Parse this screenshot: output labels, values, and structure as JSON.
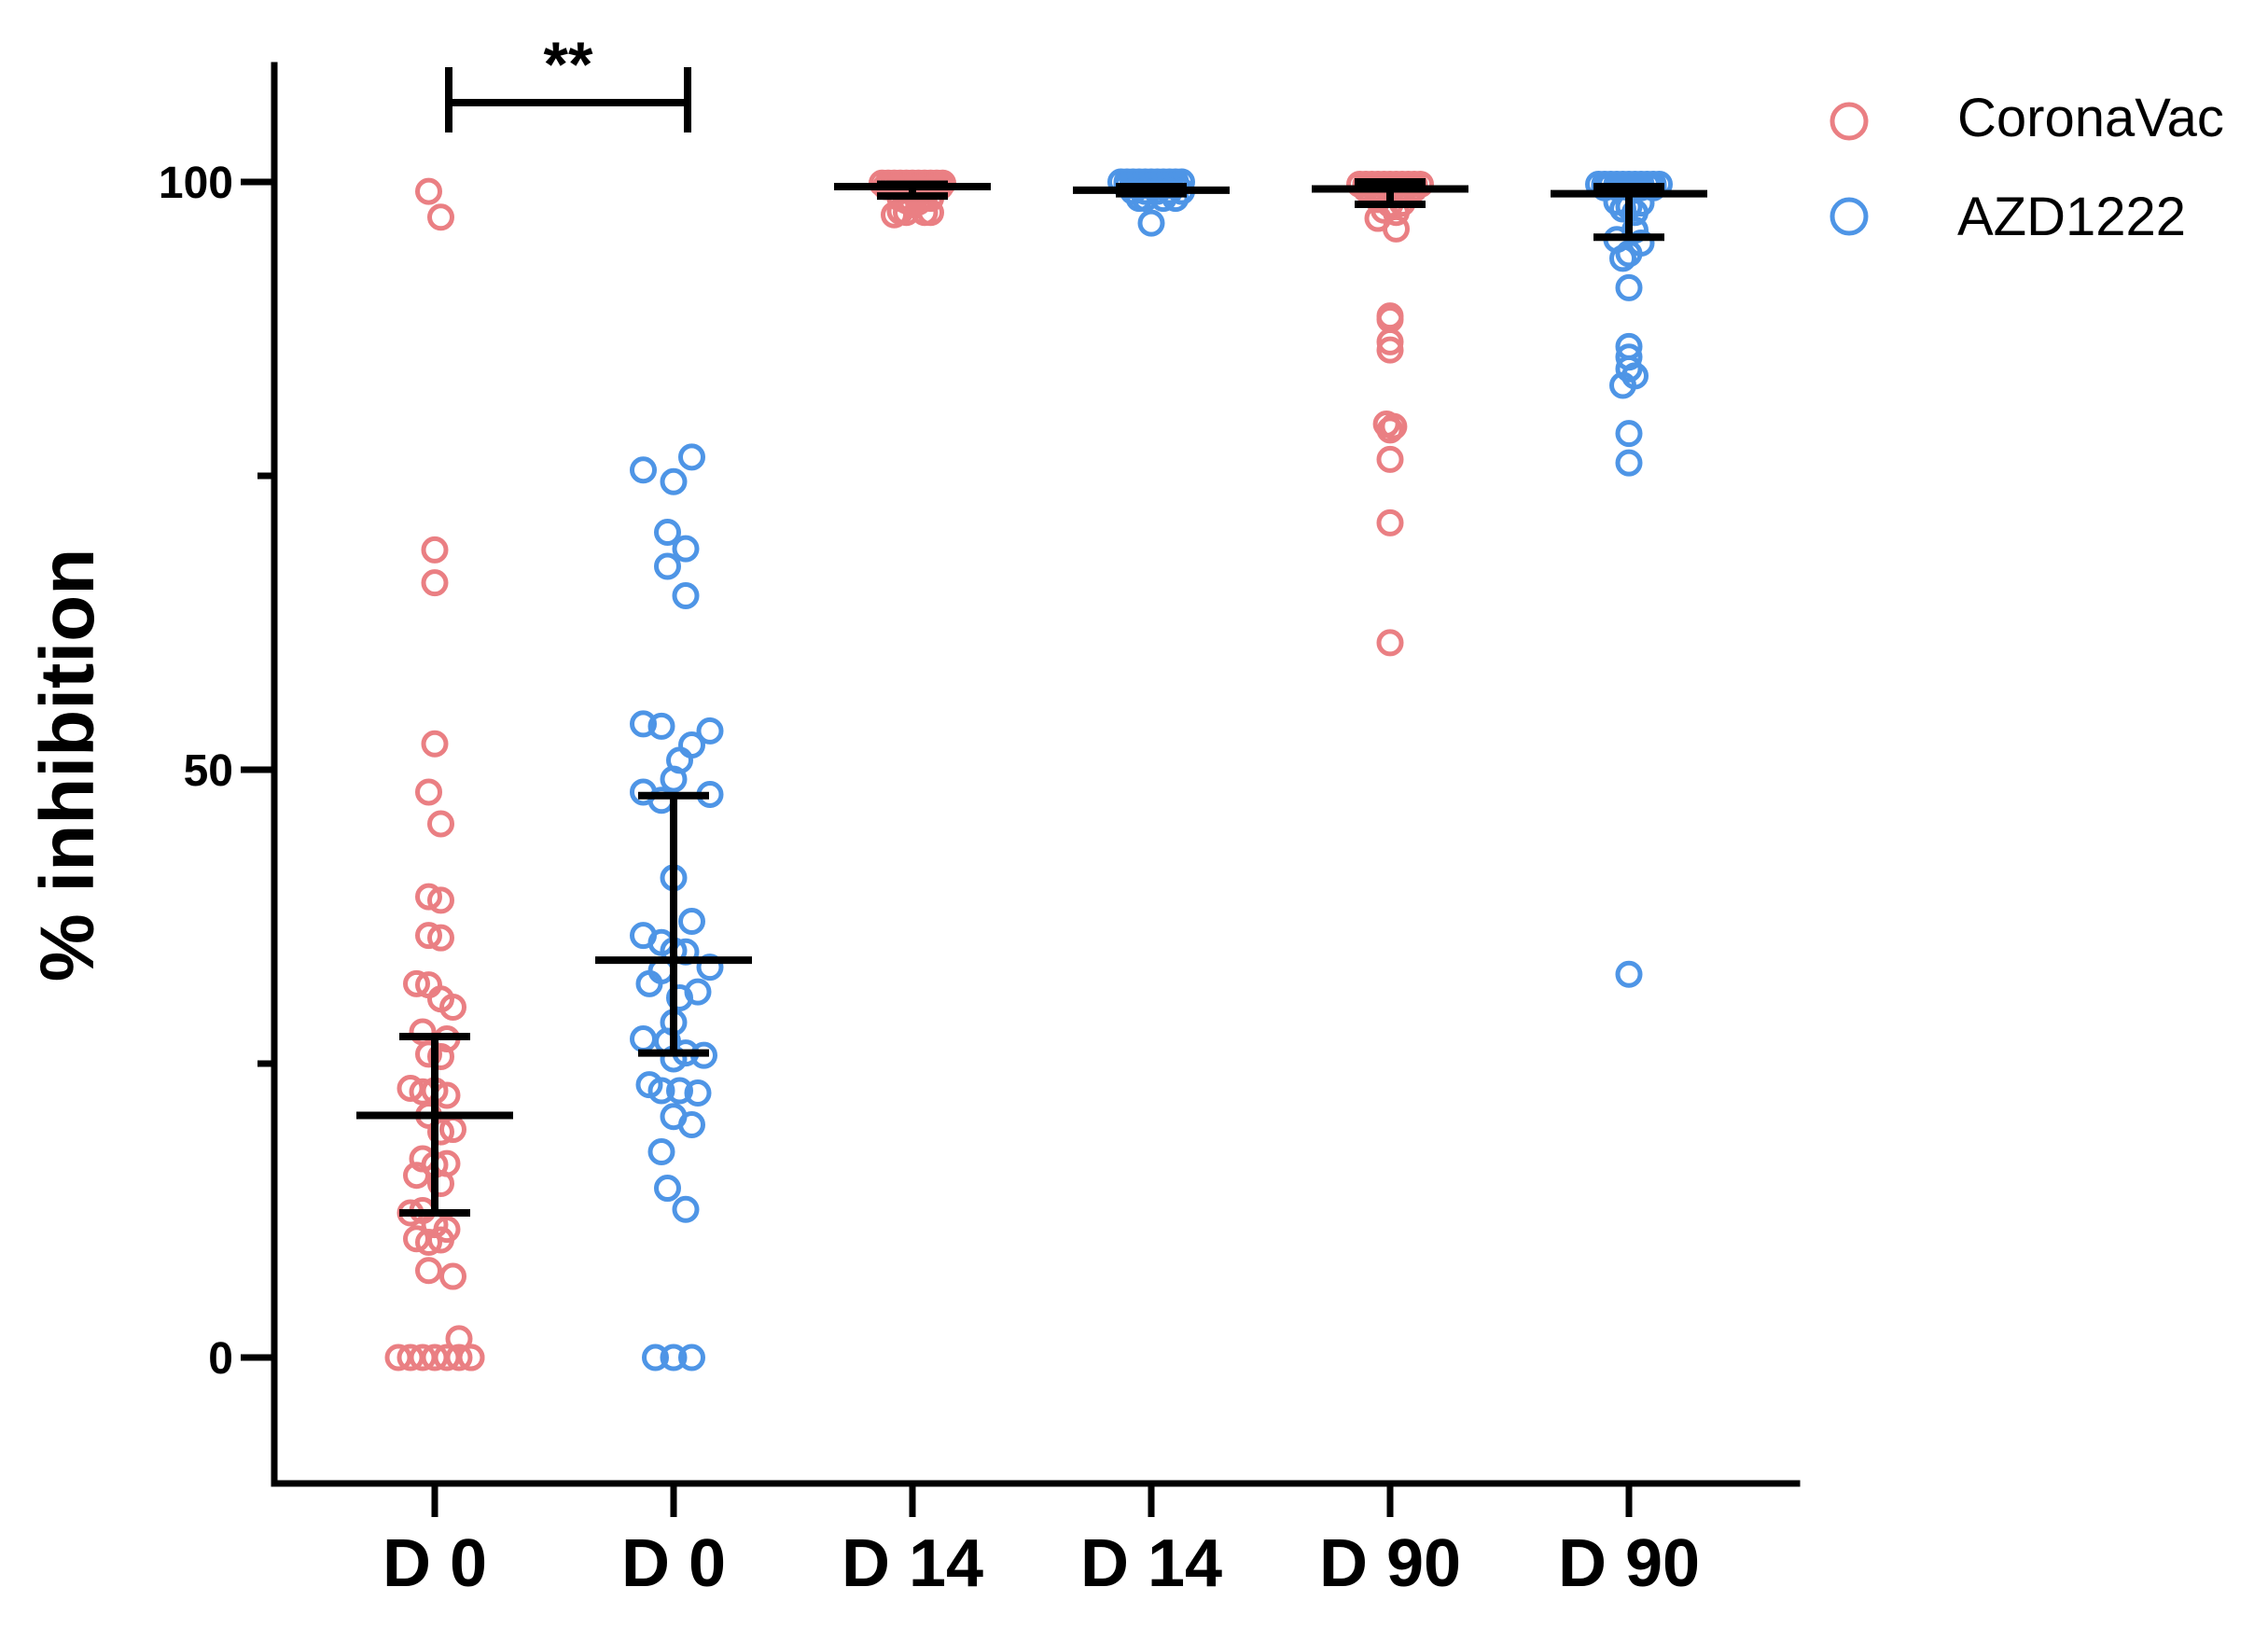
{
  "chart_data": {
    "type": "scatter",
    "title": "",
    "xlabel": "",
    "ylabel": "% inhibition",
    "ylim": [
      -10,
      111
    ],
    "yticks_major": [
      0,
      50,
      100
    ],
    "yticks_minor": [
      25,
      75
    ],
    "categories": [
      "D 0",
      "D 0",
      "D 14",
      "D 14",
      "D 90",
      "D 90"
    ],
    "colors": {
      "CoronaVac": "#ea7f83",
      "AZD1222": "#4e95e6"
    },
    "legend": {
      "position": "top-right",
      "entries": [
        "CoronaVac",
        "AZD1222"
      ]
    },
    "significance": {
      "label": "**",
      "from_group": 0,
      "to_group": 1
    },
    "groups": [
      {
        "category_index": 0,
        "series": "CoronaVac",
        "values": [
          99.2,
          97.0,
          68.7,
          65.9,
          52.2,
          48.1,
          45.4,
          39.2,
          38.9,
          35.9,
          35.7,
          31.8,
          31.7,
          30.5,
          29.8,
          27.7,
          27.1,
          25.8,
          25.6,
          22.9,
          22.6,
          22.7,
          22.3,
          20.6,
          19.2,
          19.4,
          16.9,
          16.4,
          16.5,
          15.5,
          14.8,
          12.3,
          12.5,
          11.3,
          10.9,
          10.1,
          9.8,
          10.0,
          7.4,
          6.9,
          1.6,
          0,
          0,
          0,
          0,
          0,
          0,
          0,
          0
        ],
        "offsets": [
          -0.05,
          0.05,
          0,
          0,
          0,
          -0.05,
          0.05,
          -0.05,
          0.05,
          -0.05,
          0.05,
          -0.15,
          -0.05,
          0.05,
          0.15,
          -0.1,
          0.1,
          -0.05,
          0.05,
          -0.2,
          -0.1,
          0,
          0.1,
          -0.05,
          0.05,
          0.15,
          -0.1,
          0,
          0.1,
          -0.15,
          0.05,
          -0.2,
          -0.1,
          0,
          0.1,
          -0.15,
          -0.05,
          0.05,
          -0.05,
          0.15,
          0.2,
          -0.3,
          -0.2,
          -0.1,
          0,
          0.1,
          0.2,
          0.3,
          0.3
        ],
        "mean": 20.6,
        "error_low": 12.3,
        "error_high": 27.3
      },
      {
        "category_index": 1,
        "series": "AZD1222",
        "values": [
          76.6,
          75.5,
          74.5,
          70.2,
          68.8,
          67.3,
          64.8,
          53.9,
          53.7,
          53.3,
          52.1,
          50.8,
          49.2,
          48.1,
          47.4,
          47.9,
          40.8,
          37.1,
          35.9,
          35.3,
          34.6,
          34.5,
          33.2,
          32.9,
          31.8,
          31.1,
          30.6,
          28.5,
          27.1,
          26.9,
          25.9,
          25.7,
          25.4,
          23.2,
          22.7,
          22.7,
          22.5,
          20.5,
          19.8,
          17.5,
          14.4,
          12.6,
          0,
          0,
          0
        ],
        "offsets": [
          0.15,
          -0.25,
          0,
          -0.05,
          0.1,
          -0.05,
          0.1,
          -0.25,
          -0.1,
          0.3,
          0.15,
          0.05,
          0,
          -0.25,
          -0.1,
          0.3,
          0,
          0.15,
          -0.25,
          -0.1,
          0,
          0.1,
          0.3,
          -0.1,
          -0.2,
          0.2,
          0.05,
          0,
          -0.25,
          -0.05,
          0.1,
          0.25,
          0,
          -0.2,
          -0.1,
          0.05,
          0.2,
          0,
          0.15,
          -0.1,
          -0.05,
          0.1,
          -0.15,
          0,
          0.15
        ],
        "mean": 33.8,
        "error_low": 25.9,
        "error_high": 47.8
      },
      {
        "category_index": 2,
        "series": "CoronaVac",
        "values": [
          99.9,
          99.9,
          99.9,
          99.9,
          99.9,
          99.9,
          99.9,
          99.9,
          99.9,
          99.9,
          99.9,
          99.6,
          99.6,
          99.6,
          99.6,
          99.6,
          99.6,
          99.6,
          99.6,
          99.6,
          99.6,
          98.6,
          98.4,
          98.1,
          98.3,
          98.8,
          98.6,
          97.5,
          97.4,
          97.4,
          97.2,
          97.4
        ],
        "offsets": [
          -0.25,
          -0.2,
          -0.15,
          -0.1,
          -0.05,
          0,
          0.05,
          0.1,
          0.15,
          0.2,
          0.25,
          -0.22,
          -0.17,
          -0.12,
          -0.07,
          -0.02,
          0.03,
          0.08,
          0.13,
          0.18,
          0.23,
          -0.1,
          -0.05,
          0,
          0.05,
          0.1,
          0.15,
          -0.1,
          -0.05,
          0.1,
          -0.15,
          0.15
        ],
        "mean": 99.6,
        "error_low": 98.8,
        "error_high": 99.8
      },
      {
        "category_index": 3,
        "series": "AZD1222",
        "values": [
          100,
          100,
          100,
          100,
          100,
          100,
          100,
          100,
          100,
          100,
          100,
          99.7,
          99.7,
          99.7,
          99.7,
          99.7,
          99.7,
          99.7,
          99.7,
          99.7,
          99.2,
          99.2,
          99.2,
          99.2,
          99.2,
          98.6,
          98.6,
          98.6,
          98.6,
          96.5
        ],
        "offsets": [
          -0.25,
          -0.2,
          -0.15,
          -0.1,
          -0.05,
          0,
          0.05,
          0.1,
          0.15,
          0.2,
          0.25,
          -0.2,
          -0.15,
          -0.1,
          -0.05,
          0,
          0.05,
          0.1,
          0.15,
          0.2,
          -0.15,
          -0.05,
          0.05,
          0.15,
          0.25,
          -0.1,
          -0.05,
          0.1,
          0.2,
          0
        ],
        "mean": 99.3,
        "error_low": 99.0,
        "error_high": 99.6
      },
      {
        "category_index": 4,
        "series": "CoronaVac",
        "values": [
          99.8,
          99.8,
          99.8,
          99.8,
          99.8,
          99.8,
          99.8,
          99.8,
          99.8,
          99.8,
          99.8,
          99.4,
          99.4,
          99.4,
          99.4,
          99.4,
          98.5,
          98.2,
          98.1,
          97.6,
          97.4,
          96.9,
          96.0,
          88.6,
          88.3,
          86.4,
          85.7,
          79.4,
          79.2,
          78.9,
          76.4,
          71.0,
          60.8
        ],
        "offsets": [
          -0.25,
          -0.2,
          -0.15,
          -0.1,
          -0.05,
          0,
          0.05,
          0.1,
          0.15,
          0.2,
          0.25,
          -0.2,
          -0.1,
          0,
          0.1,
          0.2,
          -0.1,
          0.1,
          0,
          -0.05,
          0.05,
          -0.1,
          0.05,
          0,
          0,
          0,
          0,
          -0.03,
          0.03,
          0,
          0,
          0,
          0
        ],
        "mean": 99.4,
        "error_low": 98.1,
        "error_high": 100.0
      },
      {
        "category_index": 5,
        "series": "AZD1222",
        "values": [
          99.8,
          99.8,
          99.8,
          99.8,
          99.8,
          99.8,
          99.8,
          99.8,
          99.8,
          99.8,
          99.8,
          99.5,
          99.5,
          99.5,
          99.5,
          99.5,
          98.3,
          98.2,
          97.9,
          97.7,
          97.4,
          95.9,
          95.1,
          94.8,
          93.9,
          93.5,
          91.0,
          86.0,
          85.1,
          84.1,
          83.5,
          82.7,
          78.6,
          76.1,
          32.6
        ],
        "offsets": [
          -0.25,
          -0.2,
          -0.15,
          -0.1,
          -0.05,
          0,
          0.05,
          0.1,
          0.15,
          0.2,
          0.25,
          -0.2,
          -0.1,
          0,
          0.1,
          0.2,
          -0.1,
          0.1,
          0,
          -0.05,
          0.05,
          0.05,
          -0.1,
          0.1,
          0,
          -0.05,
          0,
          0,
          0,
          0,
          0.05,
          -0.05,
          0,
          0,
          0
        ],
        "mean": 99.0,
        "error_low": 95.3,
        "error_high": 99.6
      }
    ]
  }
}
